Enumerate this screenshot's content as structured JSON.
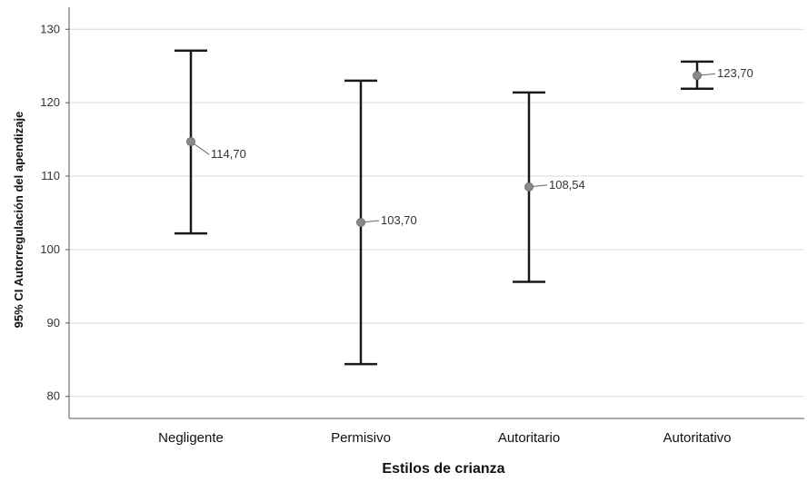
{
  "chart_data": {
    "type": "errorbar",
    "title": "",
    "xlabel": "Estilos de crianza",
    "ylabel": "95% CI Autorregulación del apendizaje",
    "ylim": [
      77,
      133
    ],
    "yticks": [
      "80",
      "90",
      "100",
      "110",
      "120",
      "130"
    ],
    "grid": true,
    "categories": [
      "Negligente",
      "Permisivo",
      "Autoritario",
      "Autoritativo"
    ],
    "means": [
      114.7,
      103.7,
      108.54,
      123.7
    ],
    "lower": [
      102.2,
      84.4,
      95.6,
      121.9
    ],
    "upper": [
      127.1,
      123.0,
      121.4,
      125.6
    ],
    "mean_labels": [
      "114,70",
      "103,70",
      "108,54",
      "123,70"
    ],
    "colors": {
      "bar": "#1a1a1a",
      "point": "#8a8a8a",
      "grid": "#d9d9d9",
      "axis": "#555555"
    }
  }
}
